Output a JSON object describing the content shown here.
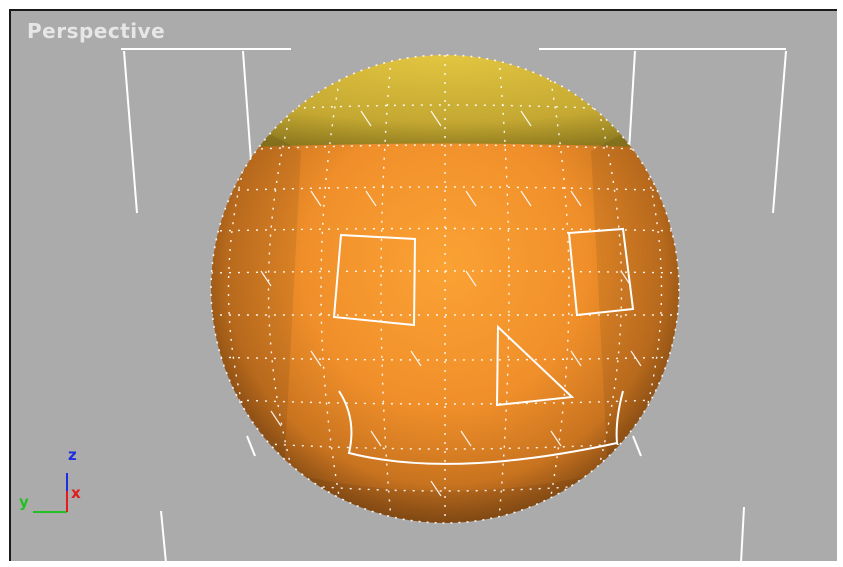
{
  "viewport": {
    "label": "Perspective",
    "background": "#ababab"
  },
  "object": {
    "type": "sphere",
    "display": "vertex-ticks",
    "base_color": "#f39a2e",
    "cap_color": "#c8b03a",
    "edge_color": "#ffffff"
  },
  "axis_tripod": {
    "z_label": "z",
    "y_label": "y",
    "x_label": "x",
    "z_color": "#1c2ee0",
    "y_color": "#22c022",
    "x_color": "#e01c1c"
  }
}
